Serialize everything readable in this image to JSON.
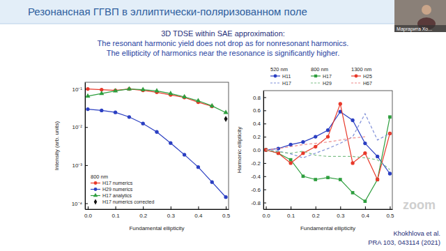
{
  "page": {
    "title": "Резонансная ГГВП в эллиптически-поляризованном поле",
    "subtitle": [
      "3D TDSE within SAE approximation:",
      "The resonant harmonic yield does not drop as for nonresonant harmonics.",
      "The ellipticity of harmonics near the resonance is significantly higher."
    ],
    "citation": [
      "Khokhlova et al.",
      "PRA 103, 043114 (2021)"
    ],
    "participant": "Маргарита Хо...",
    "watermark": "zoom"
  },
  "chart_data": [
    {
      "type": "line",
      "xlabel": "Fundamental ellipticity",
      "ylabel": "Intensity (arb. units)",
      "log": "y",
      "grid": false,
      "legend": "lower left",
      "annotations": [
        "800 nm"
      ],
      "x": [
        0,
        0.05,
        0.1,
        0.15,
        0.2,
        0.25,
        0.3,
        0.35,
        0.4,
        0.45,
        0.5
      ],
      "xlim": [
        -0.01,
        0.51
      ],
      "xticks": [
        {
          "value": 0,
          "label": "0.0"
        },
        0.1,
        0.2,
        0.3,
        0.4,
        0.5
      ],
      "ylim": [
        7e-05,
        0.15
      ],
      "yticks": [
        {
          "value": 0.1,
          "label": "10⁻¹"
        },
        {
          "value": 0.01,
          "label": "10⁻²"
        },
        {
          "value": 0.001,
          "label": "10⁻³"
        },
        {
          "value": 0.0001,
          "label": "10⁻⁴"
        }
      ],
      "series": [
        {
          "name": "H17 numerics",
          "color": "#e8392a",
          "marker": "circle",
          "line_style": "solid",
          "values": [
            0.1,
            0.096,
            0.092,
            0.1,
            0.092,
            0.082,
            0.07,
            0.06,
            0.045,
            0.035,
            null
          ]
        },
        {
          "name": "H29 numerics",
          "color": "#2b3fc2",
          "marker": "circle",
          "line_style": "solid",
          "values": [
            0.0295,
            0.0273,
            0.0243,
            0.0184,
            0.0124,
            0.00745,
            0.0038,
            0.00188,
            0.00089,
            0.00036,
            0.000145
          ]
        },
        {
          "name": "H17 analytics",
          "color": "#2e9e3e",
          "marker": "triangle",
          "line_style": "solid",
          "values": [
            0.065,
            0.076,
            0.089,
            0.1,
            0.096,
            0.089,
            0.076,
            0.062,
            0.049,
            0.036,
            0.024
          ]
        },
        {
          "name": "H17 numerics corrected",
          "color": "#111111",
          "marker": "diamond",
          "line_style": "none",
          "values": [
            null,
            null,
            null,
            null,
            null,
            null,
            null,
            null,
            null,
            null,
            0.0164
          ]
        }
      ]
    },
    {
      "type": "line",
      "xlabel": "Fundamental ellipticity",
      "ylabel": "Harmonic ellipticity",
      "grid": false,
      "legend": "top",
      "annotations": [
        "520 nm",
        "800 nm",
        "1300 nm"
      ],
      "x": [
        0,
        0.05,
        0.1,
        0.15,
        0.2,
        0.25,
        0.3,
        0.35,
        0.4,
        0.45,
        0.5
      ],
      "xlim": [
        -0.01,
        0.51
      ],
      "xticks": [
        {
          "value": 0,
          "label": "0.0"
        },
        0.1,
        0.2,
        0.3,
        0.4,
        0.5
      ],
      "ylim": [
        -0.9,
        0.9
      ],
      "yticks": [
        -0.8,
        -0.6,
        -0.4,
        -0.2,
        {
          "value": 0,
          "label": "0.0"
        },
        0.2,
        0.4,
        0.6,
        0.8
      ],
      "series": [
        {
          "name": "H11",
          "color": "#2b3fc2",
          "marker": "circle",
          "line_style": "solid",
          "values": [
            0,
            0.02,
            0.08,
            0.12,
            0.2,
            0.3,
            0.58,
            0.45,
            0.1,
            -0.1,
            -0.36
          ]
        },
        {
          "name": "H17",
          "color": "#2e9e3e",
          "marker": "square",
          "line_style": "solid",
          "values": [
            0,
            -0.05,
            -0.15,
            -0.4,
            -0.45,
            -0.42,
            -0.45,
            -0.65,
            -0.78,
            -0.45,
            0.5
          ]
        },
        {
          "name": "H25",
          "color": "#e8392a",
          "marker": "circle",
          "line_style": "solid",
          "values": [
            0,
            -0.05,
            -0.2,
            -0.05,
            0.05,
            0.2,
            0.7,
            -0.2,
            -0.05,
            -0.45,
            0.25
          ]
        },
        {
          "name": "H17",
          "color": "#7f8fd8",
          "marker": "none",
          "line_style": "dashed",
          "values": [
            0,
            -0.02,
            -0.06,
            -0.12,
            -0.05,
            0.02,
            0.1,
            0.2,
            0.55,
            0.15,
            0.25
          ]
        },
        {
          "name": "H29",
          "color": "#7fc08a",
          "marker": "none",
          "line_style": "dashed",
          "values": [
            0,
            -0.03,
            -0.05,
            -0.02,
            -0.08,
            -0.1,
            -0.1,
            -0.1,
            -0.12,
            -0.15,
            -0.3
          ]
        },
        {
          "name": "H67",
          "color": "#ee8a8a",
          "marker": "none",
          "line_style": "dashed",
          "values": [
            0,
            0.02,
            0.05,
            0.08,
            0.1,
            0.12,
            0.15,
            0.18,
            0.2,
            null,
            null
          ]
        }
      ]
    }
  ]
}
